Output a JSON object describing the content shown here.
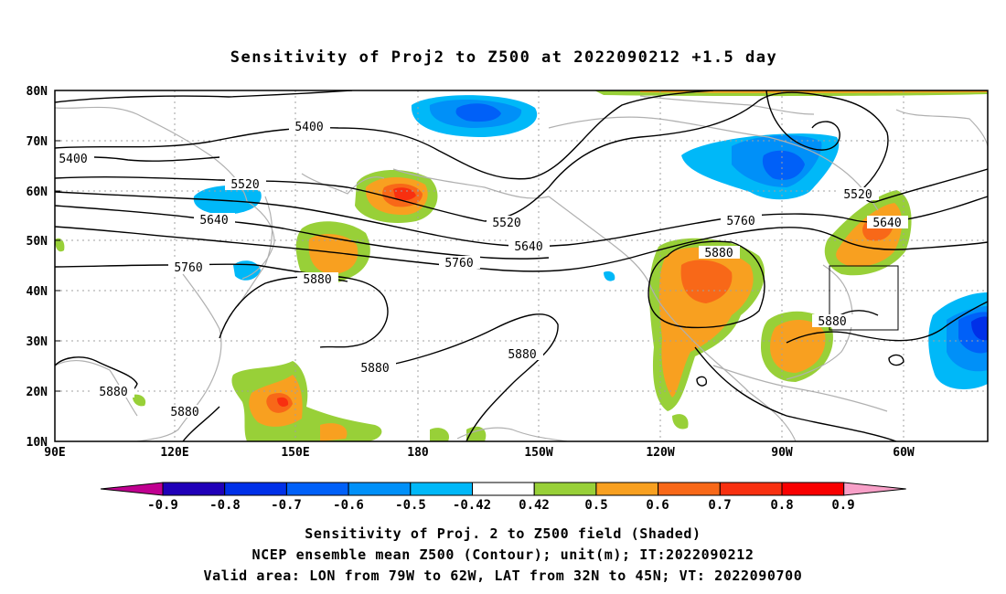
{
  "title": "Sensitivity of Proj2 to Z500 at 2022090212 +1.5 day",
  "lat_labels": [
    "80N",
    "70N",
    "60N",
    "50N",
    "40N",
    "30N",
    "20N",
    "10N"
  ],
  "lon_labels": [
    "90E",
    "120E",
    "150E",
    "180",
    "150W",
    "120W",
    "90W",
    "60W"
  ],
  "contour_labels": [
    "5400",
    "5400",
    "5520",
    "5520",
    "5520",
    "5640",
    "5640",
    "5640",
    "5760",
    "5760",
    "5760",
    "5880",
    "5880",
    "5880",
    "5880",
    "5880",
    "5880",
    "5880"
  ],
  "colorbar": {
    "labels": [
      "-0.9",
      "-0.8",
      "-0.7",
      "-0.6",
      "-0.5",
      "-0.42",
      "0.42",
      "0.5",
      "0.6",
      "0.7",
      "0.8",
      "0.9"
    ],
    "colors": [
      "#2000b8",
      "#0030e8",
      "#0060f8",
      "#0090f8",
      "#00b8f8",
      "#ffffff",
      "#98d038",
      "#f8a020",
      "#f86818",
      "#f83010",
      "#f80000"
    ],
    "low_color": "#c00090",
    "high_color": "#f8a0c8"
  },
  "footer": {
    "line1": "Sensitivity of Proj. 2 to Z500 field (Shaded)",
    "line2": "NCEP ensemble mean Z500 (Contour); unit(m); IT:2022090212",
    "line3": "Valid area: LON from 79W to 62W, LAT from 32N to 45N; VT: 2022090700"
  },
  "valid_area": {
    "lon_from": "79W",
    "lon_to": "62W",
    "lat_from": "32N",
    "lat_to": "45N"
  },
  "colors": {
    "contour": "#000000",
    "coast": "#b0b0b0",
    "grid": "#a0a0a0"
  }
}
